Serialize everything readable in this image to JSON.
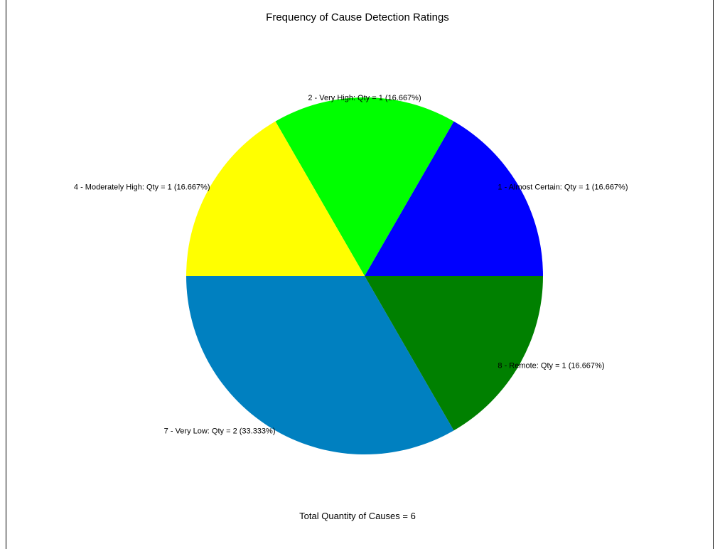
{
  "chart_data": {
    "type": "pie",
    "title": "Frequency of Cause Detection Ratings",
    "footer": "Total Quantity of Causes = 6",
    "slices": [
      {
        "label": "1 - Almost Certain: Qty = 1 (16.667%)",
        "value": 1,
        "color": "#0000ff"
      },
      {
        "label": "2 - Very High: Qty = 1 (16.667%)",
        "value": 1,
        "color": "#00ff00"
      },
      {
        "label": "4 - Moderately High: Qty = 1 (16.667%)",
        "value": 1,
        "color": "#ffff00"
      },
      {
        "label": "7 - Very Low: Qty = 2 (33.333%)",
        "value": 2,
        "color": "#0080c0"
      },
      {
        "label": "8 - Remote: Qty = 1 (16.667%)",
        "value": 1,
        "color": "#008000"
      }
    ]
  }
}
